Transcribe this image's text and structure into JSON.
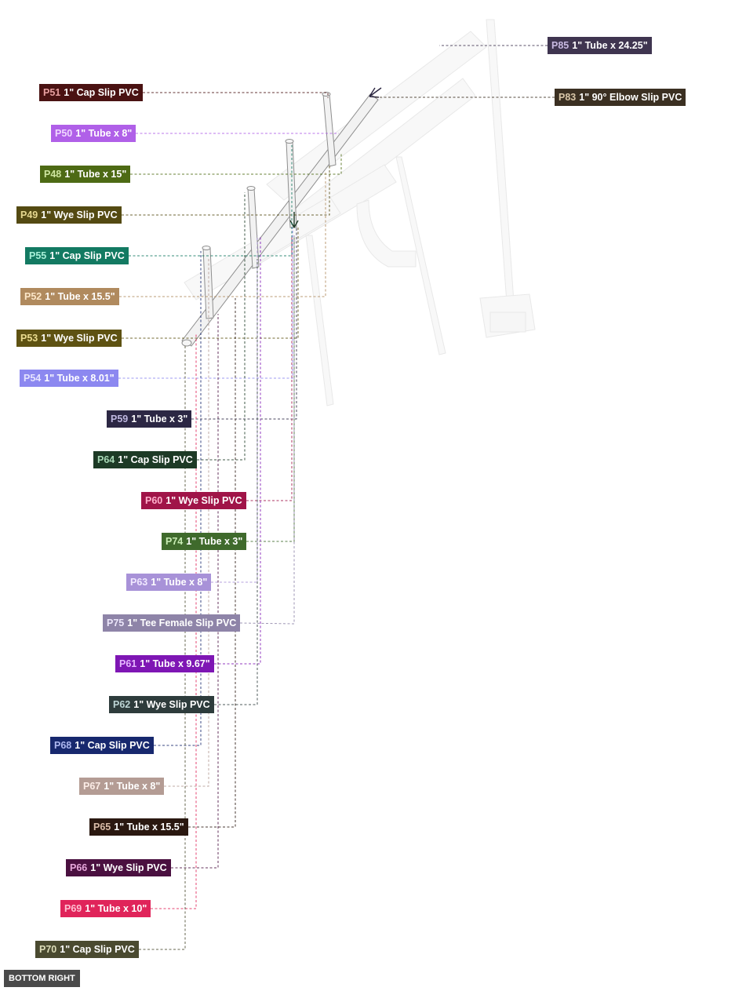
{
  "view_label": "BOTTOM RIGHT",
  "callouts": [
    {
      "id": "P85",
      "desc": "1\" Tube x 24.25\"",
      "bg": "#3f3550",
      "pid_color": "#c7b9e0"
    },
    {
      "id": "P51",
      "desc": "1\" Cap Slip PVC",
      "bg": "#4a1212",
      "pid_color": "#e8a0a0"
    },
    {
      "id": "P83",
      "desc": "1\" 90° Elbow Slip PVC",
      "bg": "#3b3022",
      "pid_color": "#d8c6a8"
    },
    {
      "id": "P50",
      "desc": "1\" Tube x 8\"",
      "bg": "#b060e8",
      "pid_color": "#f0d8ff"
    },
    {
      "id": "P48",
      "desc": "1\" Tube x 15\"",
      "bg": "#4d6a14",
      "pid_color": "#cfe6a0"
    },
    {
      "id": "P49",
      "desc": "1\" Wye Slip PVC",
      "bg": "#544a12",
      "pid_color": "#e6d890"
    },
    {
      "id": "P55",
      "desc": "1\" Cap Slip PVC",
      "bg": "#137a62",
      "pid_color": "#a8f0d8"
    },
    {
      "id": "P52",
      "desc": "1\" Tube x 15.5\"",
      "bg": "#b08a5e",
      "pid_color": "#fbe6c8"
    },
    {
      "id": "P53",
      "desc": "1\" Wye Slip PVC",
      "bg": "#5e5212",
      "pid_color": "#eadc90"
    },
    {
      "id": "P54",
      "desc": "1\" Tube x 8.01\"",
      "bg": "#8c88f0",
      "pid_color": "#e6e4ff"
    },
    {
      "id": "P59",
      "desc": "1\" Tube x 3\"",
      "bg": "#2c2744",
      "pid_color": "#bfb8e0"
    },
    {
      "id": "P64",
      "desc": "1\" Cap Slip PVC",
      "bg": "#1d3a26",
      "pid_color": "#a8d8b6"
    },
    {
      "id": "P60",
      "desc": "1\" Wye Slip PVC",
      "bg": "#a01448",
      "pid_color": "#ffb0cc"
    },
    {
      "id": "P74",
      "desc": "1\" Tube x 3\"",
      "bg": "#3f6a2c",
      "pid_color": "#c8ecb4"
    },
    {
      "id": "P63",
      "desc": "1\" Tube x 8\"",
      "bg": "#a892d8",
      "pid_color": "#f0e8ff"
    },
    {
      "id": "P75",
      "desc": "1\" Tee Female Slip PVC",
      "bg": "#8e84a8",
      "pid_color": "#ece6fa"
    },
    {
      "id": "P61",
      "desc": "1\" Tube x 9.67\"",
      "bg": "#7e16b4",
      "pid_color": "#e6b8ff"
    },
    {
      "id": "P62",
      "desc": "1\" Wye Slip PVC",
      "bg": "#2e3c3c",
      "pid_color": "#bcd4d4"
    },
    {
      "id": "P68",
      "desc": "1\" Cap Slip PVC",
      "bg": "#17286e",
      "pid_color": "#aeb8f0"
    },
    {
      "id": "P67",
      "desc": "1\" Tube x 8\"",
      "bg": "#b49c94",
      "pid_color": "#fbece6"
    },
    {
      "id": "P65",
      "desc": "1\" Tube x 15.5\"",
      "bg": "#2a1810",
      "pid_color": "#d8bca8"
    },
    {
      "id": "P66",
      "desc": "1\" Wye Slip PVC",
      "bg": "#4a1040",
      "pid_color": "#e8a8dc"
    },
    {
      "id": "P69",
      "desc": "1\" Tube x 10\"",
      "bg": "#e0245a",
      "pid_color": "#ffc0d2"
    },
    {
      "id": "P70",
      "desc": "1\" Cap Slip PVC",
      "bg": "#4a4a30",
      "pid_color": "#dcdcb8"
    }
  ]
}
